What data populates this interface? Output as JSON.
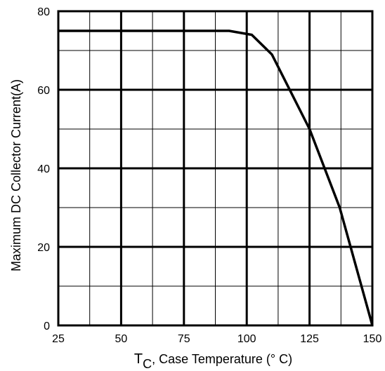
{
  "chart_data": {
    "type": "line",
    "title": "",
    "xlabel_main": "T",
    "xlabel_sub": "C",
    "xlabel_rest": ", Case Temperature (° C)",
    "ylabel": "Maximum DC Collector Current(A)",
    "xlim": [
      25,
      150
    ],
    "ylim": [
      0,
      80
    ],
    "x_ticks": [
      25,
      50,
      75,
      100,
      125,
      150
    ],
    "y_ticks": [
      0,
      20,
      40,
      60,
      80
    ],
    "x_ticks_labels": [
      "25",
      "50",
      "75",
      "100",
      "125",
      "150"
    ],
    "y_ticks_labels": [
      "0",
      "20",
      "40",
      "60",
      "80"
    ],
    "x_minor_step": 12.5,
    "y_minor_step": 10,
    "grid": true,
    "series": [
      {
        "x": [
          25,
          93,
          102,
          110,
          125,
          137,
          150
        ],
        "y": [
          75,
          75,
          74,
          69,
          50,
          30,
          0
        ]
      }
    ]
  }
}
